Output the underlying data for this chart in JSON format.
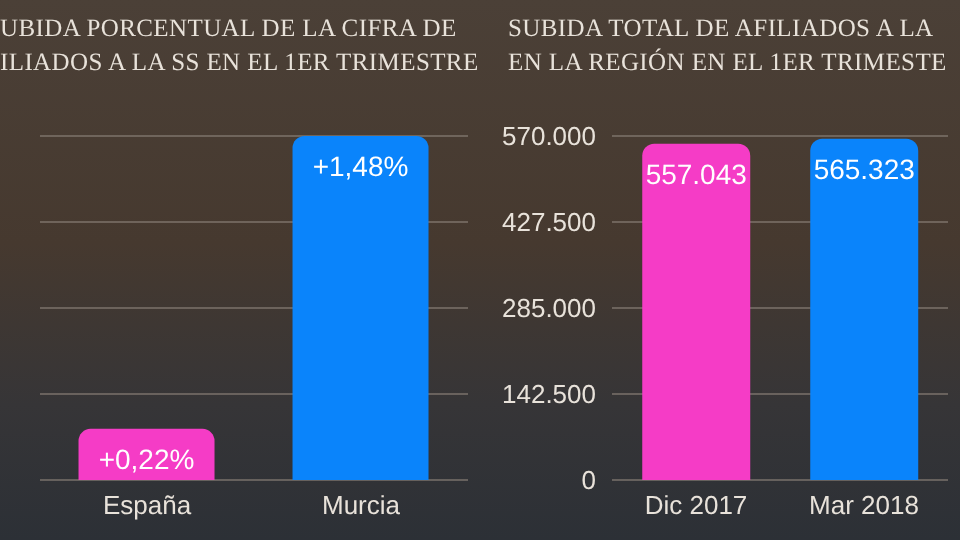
{
  "chart_data": [
    {
      "type": "bar",
      "title": "UBIDA PORCENTUAL DE LA CIFRA DE\nILIADOS A LA SS EN EL 1ER TRIMESTRE",
      "categories": [
        "España",
        "Murcia"
      ],
      "values": [
        0.22,
        1.48
      ],
      "value_labels": [
        "+0,22%",
        "+1,48%"
      ],
      "colors": [
        "#f53cc6",
        "#0a84fb"
      ],
      "ylim": [
        0,
        1.48
      ],
      "yticks": [
        {
          "value": 0,
          "label": null
        },
        {
          "value": 0.37,
          "label": null
        },
        {
          "value": 0.74,
          "label": null
        },
        {
          "value": 1.11,
          "label": null
        },
        {
          "value": 1.48,
          "label": null
        }
      ],
      "grid": "y"
    },
    {
      "type": "bar",
      "title": "SUBIDA TOTAL DE AFILIADOS A LA\nEN LA REGIÓN EN EL 1ER TRIMESTE",
      "categories": [
        "Dic 2017",
        "Mar 2018"
      ],
      "values": [
        557043,
        565323
      ],
      "value_labels": [
        "557.043",
        "565.323"
      ],
      "colors": [
        "#f53cc6",
        "#0a84fb"
      ],
      "ylim": [
        0,
        570000
      ],
      "yticks": [
        {
          "value": 0,
          "label": "0"
        },
        {
          "value": 142500,
          "label": "142.500"
        },
        {
          "value": 285000,
          "label": "285.000"
        },
        {
          "value": 427500,
          "label": "427.500"
        },
        {
          "value": 570000,
          "label": "570.000"
        }
      ],
      "grid": "y"
    }
  ]
}
